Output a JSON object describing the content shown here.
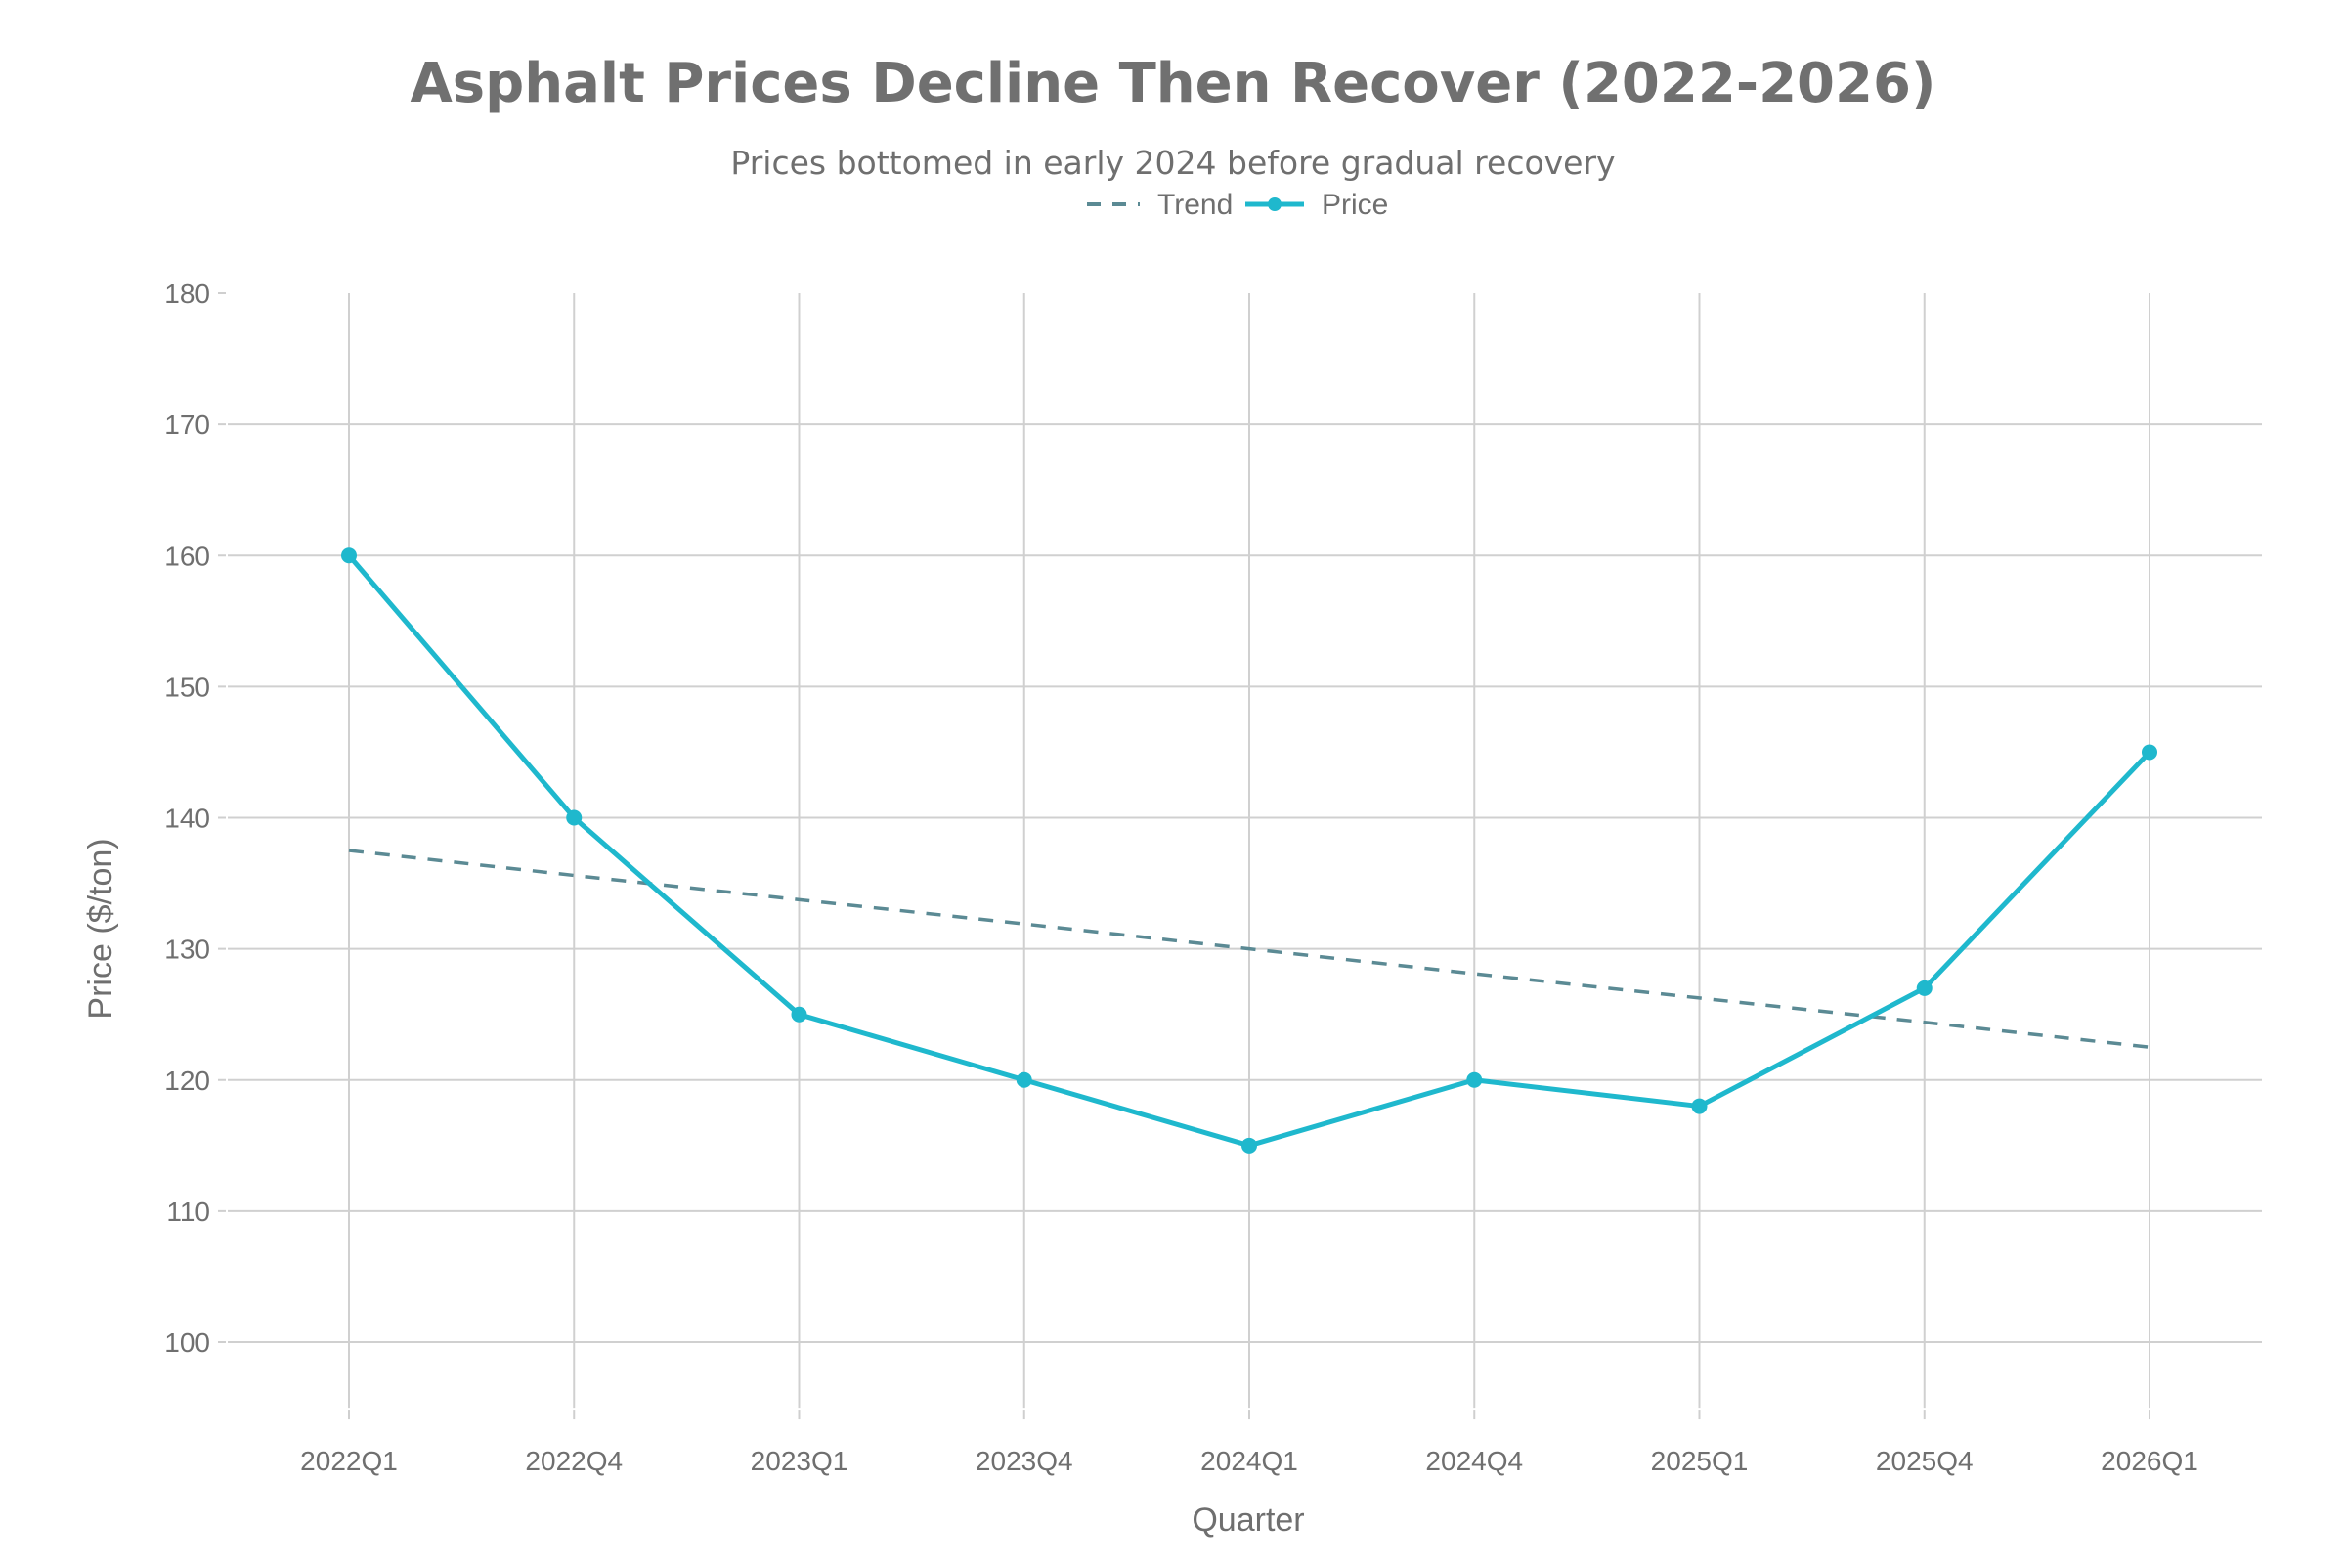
{
  "chart_data": {
    "type": "line",
    "title": "Asphalt Prices Decline Then Recover (2022-2026)",
    "subtitle": "Prices bottomed in early 2024 before gradual recovery",
    "xlabel": "Quarter",
    "ylabel": "Price ($/ton)",
    "categories": [
      "2022Q1",
      "2022Q4",
      "2023Q1",
      "2023Q4",
      "2024Q1",
      "2024Q4",
      "2025Q1",
      "2025Q4",
      "2026Q1"
    ],
    "ylim": [
      95,
      180
    ],
    "yticks": [
      100,
      110,
      120,
      130,
      140,
      150,
      160,
      170,
      180
    ],
    "grid": true,
    "legend_position": "top-center",
    "series": [
      {
        "name": "Trend",
        "style": "dashed",
        "color": "#5b8a94",
        "values": [
          137.5,
          135.6,
          133.75,
          131.9,
          130,
          128.1,
          126.25,
          124.4,
          122.5
        ]
      },
      {
        "name": "Price",
        "style": "line+markers",
        "color": "#1fb8cd",
        "values": [
          160,
          140,
          125,
          120,
          115,
          120,
          118,
          127,
          145
        ]
      }
    ]
  }
}
